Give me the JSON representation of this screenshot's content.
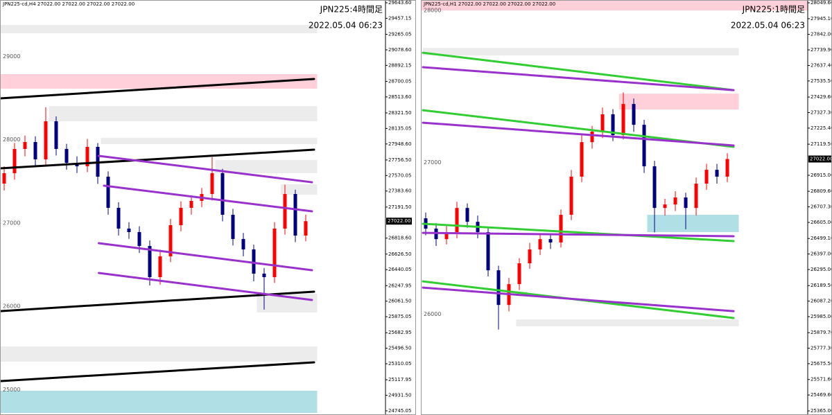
{
  "chart_data": [
    {
      "type": "candlestick",
      "header": "JPN225-cd,H4  27022.00 27022.00 27022.00 27022.00",
      "title": "JPN225:4時間足",
      "timestamp": "2022.05.04 06:23",
      "xlim": [
        -0.4,
        36.67
      ],
      "ylim": [
        24695,
        29677
      ],
      "yticks": [
        {
          "value": 29643.6,
          "label": "29643.60"
        },
        {
          "value": 29457.15,
          "label": "29457.15"
        },
        {
          "value": 29265.05,
          "label": "29265.05"
        },
        {
          "value": 29078.6,
          "label": "29078.60"
        },
        {
          "value": 28892.15,
          "label": "28892.15"
        },
        {
          "value": 28700.05,
          "label": "28700.05"
        },
        {
          "value": 28513.6,
          "label": "28513.60"
        },
        {
          "value": 28321.5,
          "label": "28321.50"
        },
        {
          "value": 28135.05,
          "label": "28135.05"
        },
        {
          "value": 27948.6,
          "label": "27948.60"
        },
        {
          "value": 27756.5,
          "label": "27756.50"
        },
        {
          "value": 27570.05,
          "label": "27570.05"
        },
        {
          "value": 27383.6,
          "label": "27383.60"
        },
        {
          "value": 27191.5,
          "label": "27191.50"
        },
        {
          "value": 26818.6,
          "label": "26818.60"
        },
        {
          "value": 26626.5,
          "label": "26626.50"
        },
        {
          "value": 26440.05,
          "label": "26440.05"
        },
        {
          "value": 26247.95,
          "label": "26247.95"
        },
        {
          "value": 26061.5,
          "label": "26061.50"
        },
        {
          "value": 25875.05,
          "label": "25875.05"
        },
        {
          "value": 25682.95,
          "label": "25682.95"
        },
        {
          "value": 25496.5,
          "label": "25496.50"
        },
        {
          "value": 25310.05,
          "label": "25310.05"
        },
        {
          "value": 25117.95,
          "label": "25117.95"
        },
        {
          "value": 24931.5,
          "label": "24931.50"
        },
        {
          "value": 24745.05,
          "label": "24745.05"
        }
      ],
      "level_labels": [
        29000,
        28000,
        27000,
        26000,
        25000
      ],
      "last_price": {
        "value": 27022,
        "label": "27022.00"
      },
      "colors": {
        "up": "#ff0000",
        "down": "#000080"
      },
      "open": [
        27473,
        27598,
        27889,
        27972,
        27764,
        28221,
        27889,
        27722,
        27681,
        27914,
        27556,
        27182,
        26933,
        26891,
        26724,
        26350,
        26600,
        26974,
        27182,
        27265,
        27348,
        27598,
        27099,
        26808,
        26683,
        26392,
        26350,
        26933,
        27348,
        26849
      ],
      "high": [
        27680,
        27960,
        28050,
        28040,
        28390,
        28280,
        27950,
        27800,
        28010,
        27960,
        27620,
        27250,
        27010,
        26960,
        26790,
        26680,
        27050,
        27260,
        27330,
        27420,
        27790,
        27650,
        27170,
        26880,
        26740,
        26460,
        27010,
        27460,
        27400,
        27100
      ],
      "low": [
        27390,
        27520,
        27800,
        27690,
        27700,
        27810,
        27640,
        27600,
        27610,
        27470,
        27100,
        26850,
        26810,
        26640,
        26250,
        26260,
        26530,
        26900,
        27100,
        27190,
        27270,
        27020,
        26730,
        26600,
        26300,
        25960,
        26280,
        26860,
        26770,
        26780
      ],
      "close": [
        27598,
        27889,
        27972,
        27764,
        28221,
        27889,
        27722,
        27681,
        27914,
        27556,
        27182,
        26933,
        26891,
        26724,
        26350,
        26600,
        26974,
        27182,
        27265,
        27348,
        27598,
        27099,
        26808,
        26683,
        26392,
        26350,
        26933,
        27348,
        26849,
        27022
      ],
      "zones": [
        {
          "x": [
            -0.4,
            30.1
          ],
          "y": [
            29377,
            29278
          ],
          "color": "#ececec"
        },
        {
          "x": [
            -0.4,
            30.1
          ],
          "y": [
            28787,
            28612
          ],
          "color": "#ffd0da"
        },
        {
          "x": [
            4.3,
            30.1
          ],
          "y": [
            28404,
            28221
          ],
          "color": "#ececec"
        },
        {
          "x": [
            9.3,
            30.1
          ],
          "y": [
            28022,
            27947
          ],
          "color": "#ececec"
        },
        {
          "x": [
            20.3,
            30.1
          ],
          "y": [
            27756,
            27598
          ],
          "color": "#ececec"
        },
        {
          "x": [
            26.6,
            30.1
          ],
          "y": [
            27465,
            27340
          ],
          "color": "#ececec"
        },
        {
          "x": [
            24.3,
            30.1
          ],
          "y": [
            26150,
            25926
          ],
          "color": "#ececec"
        },
        {
          "x": [
            -0.4,
            30.1
          ],
          "y": [
            25518,
            25335
          ],
          "color": "#ececec"
        },
        {
          "x": [
            -0.4,
            30.1
          ],
          "y": [
            24986,
            24720
          ],
          "color": "#b0e0e6"
        }
      ],
      "lines": [
        {
          "x": [
            -0.4,
            29.8
          ],
          "y": [
            28496,
            28729
          ],
          "color": "#000000"
        },
        {
          "x": [
            -0.4,
            29.8
          ],
          "y": [
            27656,
            27880
          ],
          "color": "#000000"
        },
        {
          "x": [
            -0.4,
            29.8
          ],
          "y": [
            25942,
            26175
          ],
          "color": "#000000"
        },
        {
          "x": [
            -0.4,
            29.8
          ],
          "y": [
            25102,
            25327
          ],
          "color": "#000000"
        },
        {
          "x": [
            9.1,
            29.6
          ],
          "y": [
            27806,
            27489
          ],
          "color": "#9932cc"
        },
        {
          "x": [
            9.6,
            29.6
          ],
          "y": [
            27448,
            27140
          ],
          "color": "#9932cc"
        },
        {
          "x": [
            9.1,
            29.6
          ],
          "y": [
            26758,
            26433
          ],
          "color": "#9932cc"
        },
        {
          "x": [
            9.1,
            29.6
          ],
          "y": [
            26400,
            26076
          ],
          "color": "#9932cc"
        }
      ]
    },
    {
      "type": "candlestick",
      "header": "JPN225-cd,H1  27022.00 27022.00 27022.00 27022.00",
      "title": "JPN225:1時間足",
      "timestamp": "2022.05.04 06:23",
      "xlim": [
        -0.467,
        36.73
      ],
      "ylim": [
        25338,
        28068
      ],
      "yticks": [
        {
          "value": 28049.6,
          "label": "28049.60"
        },
        {
          "value": 27945.1,
          "label": "27945.10"
        },
        {
          "value": 27842,
          "label": "27842.00"
        },
        {
          "value": 27739.9,
          "label": "27739.90"
        },
        {
          "value": 27637.4,
          "label": "27637.40"
        },
        {
          "value": 27535.5,
          "label": "27535.50"
        },
        {
          "value": 27429.6,
          "label": "27429.60"
        },
        {
          "value": 27327.3,
          "label": "27327.30"
        },
        {
          "value": 27225.4,
          "label": "27225.40"
        },
        {
          "value": 27119.5,
          "label": "27119.50"
        },
        {
          "value": 26915,
          "label": "26915.00"
        },
        {
          "value": 26809.6,
          "label": "26809.60"
        },
        {
          "value": 26707.3,
          "label": "26707.30"
        },
        {
          "value": 26605,
          "label": "26605.00"
        },
        {
          "value": 26499.1,
          "label": "26499.10"
        },
        {
          "value": 26397,
          "label": "26397.00"
        },
        {
          "value": 26295,
          "label": "26295.00"
        },
        {
          "value": 26189.5,
          "label": "26189.50"
        },
        {
          "value": 26087.2,
          "label": "26087.20"
        },
        {
          "value": 25985,
          "label": "25985.00"
        },
        {
          "value": 25879.7,
          "label": "25879.70"
        },
        {
          "value": 25777.3,
          "label": "25777.30"
        },
        {
          "value": 25675.5,
          "label": "25675.50"
        },
        {
          "value": 25571.6,
          "label": "25571.60"
        },
        {
          "value": 25469.6,
          "label": "25469.60"
        },
        {
          "value": 25365,
          "label": "25365.00"
        }
      ],
      "level_labels": [
        28000,
        27000,
        26000
      ],
      "last_price": {
        "value": 27022,
        "label": "27022.00"
      },
      "colors": {
        "up": "#ff0000",
        "down": "#000080"
      },
      "open": [
        26632,
        26564,
        26495,
        26541,
        26700,
        26609,
        26541,
        26290,
        26062,
        26199,
        26336,
        26427,
        26495,
        26473,
        26655,
        26906,
        27133,
        27202,
        27316,
        27179,
        27384,
        27247,
        26974,
        26700,
        26723,
        26769,
        26700,
        26860,
        26951,
        26906
      ],
      "high": [
        26670,
        26600,
        26580,
        26740,
        26730,
        26650,
        26570,
        26320,
        26240,
        26370,
        26470,
        26530,
        26530,
        26690,
        26950,
        27180,
        27240,
        27360,
        27350,
        27460,
        27420,
        27280,
        27010,
        26760,
        26810,
        26800,
        26900,
        26990,
        26990,
        27060
      ],
      "low": [
        26520,
        26450,
        26460,
        26500,
        26570,
        26500,
        26250,
        25900,
        26020,
        26160,
        26300,
        26390,
        26430,
        26440,
        26620,
        26870,
        27090,
        27160,
        27140,
        27150,
        27200,
        26930,
        26540,
        26650,
        26680,
        26560,
        26650,
        26820,
        26860,
        26870
      ],
      "close": [
        26564,
        26495,
        26541,
        26700,
        26609,
        26541,
        26290,
        26062,
        26199,
        26336,
        26427,
        26495,
        26473,
        26655,
        26906,
        27133,
        27202,
        27316,
        27179,
        27384,
        27247,
        26974,
        26700,
        26723,
        26769,
        26700,
        26860,
        26951,
        26906,
        27022
      ],
      "zones": [
        {
          "x": [
            -0.467,
            36.73
          ],
          "y": [
            28068,
            27999
          ],
          "color": "#ffd0da"
        },
        {
          "x": [
            -0.27,
            30.1
          ],
          "y": [
            27753,
            27703
          ],
          "color": "#ececec"
        },
        {
          "x": [
            18.6,
            30.1
          ],
          "y": [
            27452,
            27348
          ],
          "color": "#ffd0da"
        },
        {
          "x": [
            21.3,
            30.1
          ],
          "y": [
            26655,
            26541
          ],
          "color": "#b0e0e6"
        },
        {
          "x": [
            8.7,
            30.1
          ],
          "y": [
            25967,
            25921
          ],
          "color": "#ececec"
        }
      ],
      "lines": [
        {
          "x": [
            -0.27,
            29.6
          ],
          "y": [
            27721,
            27475
          ],
          "color": "#32cd32"
        },
        {
          "x": [
            -0.27,
            29.6
          ],
          "y": [
            27626,
            27475
          ],
          "color": "#9932cc"
        },
        {
          "x": [
            -0.27,
            29.6
          ],
          "y": [
            27343,
            27102
          ],
          "color": "#32cd32"
        },
        {
          "x": [
            -0.27,
            29.6
          ],
          "y": [
            27261,
            27111
          ],
          "color": "#9932cc"
        },
        {
          "x": [
            -0.27,
            29.6
          ],
          "y": [
            26596,
            26482
          ],
          "color": "#32cd32"
        },
        {
          "x": [
            -0.27,
            29.6
          ],
          "y": [
            26536,
            26514
          ],
          "color": "#9932cc"
        },
        {
          "x": [
            -0.27,
            29.6
          ],
          "y": [
            26217,
            25976
          ],
          "color": "#32cd32"
        },
        {
          "x": [
            -0.27,
            29.6
          ],
          "y": [
            26176,
            26021
          ],
          "color": "#9932cc"
        }
      ]
    }
  ]
}
